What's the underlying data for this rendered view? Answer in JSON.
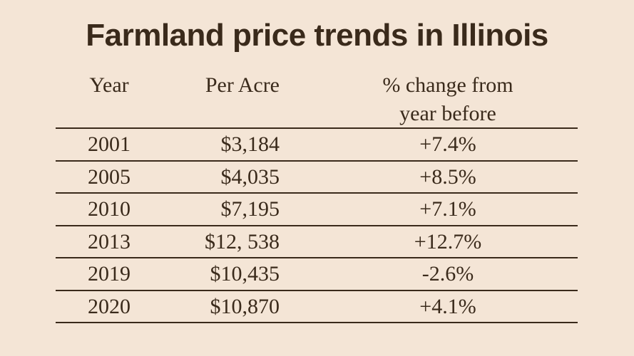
{
  "header": {
    "title": "Farmland price trends in Illinois"
  },
  "table": {
    "columns": [
      "Year",
      "Per Acre",
      "% change from year before"
    ],
    "rows": [
      [
        "2001",
        "$3,184",
        "+7.4%"
      ],
      [
        "2005",
        "$4,035",
        "+8.5%"
      ],
      [
        "2010",
        "$7,195",
        "+7.1%"
      ],
      [
        "2013",
        "$12, 538",
        "+12.7%"
      ],
      [
        "2019",
        "$10,435",
        "-2.6%"
      ],
      [
        "2020",
        "$10,870",
        "+4.1%"
      ]
    ]
  }
}
